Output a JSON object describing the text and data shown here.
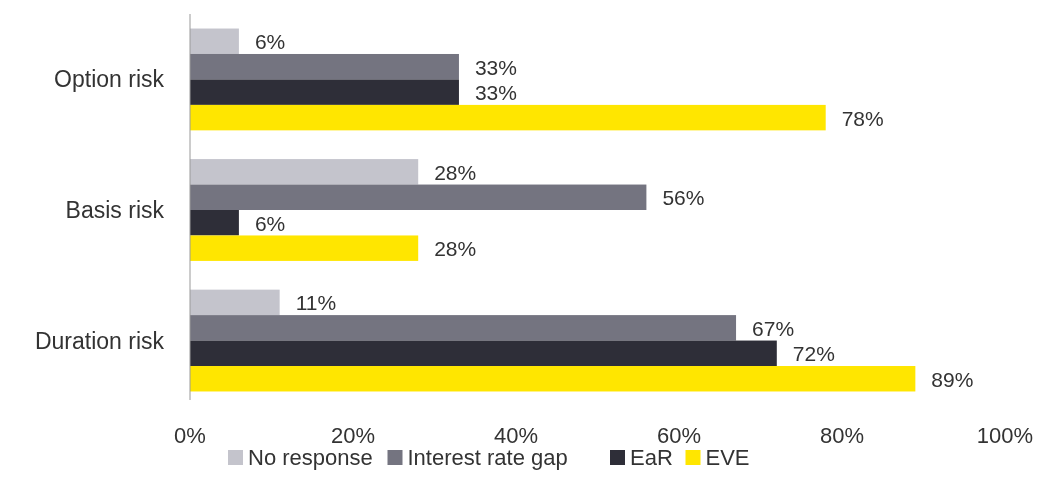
{
  "chart_data": {
    "type": "bar",
    "orientation": "horizontal",
    "categories": [
      "Option risk",
      "Basis risk",
      "Duration risk"
    ],
    "series": [
      {
        "name": "No response",
        "color": "#c4c4cc",
        "values": [
          6,
          28,
          11
        ],
        "value_labels": [
          "6%",
          "28%",
          "11%"
        ]
      },
      {
        "name": "Interest rate gap",
        "color": "#747480",
        "values": [
          33,
          56,
          67
        ],
        "value_labels": [
          "33%",
          "56%",
          "67%"
        ]
      },
      {
        "name": "EaR",
        "color": "#2e2e38",
        "values": [
          33,
          6,
          72
        ],
        "value_labels": [
          "33%",
          "6%",
          "72%"
        ]
      },
      {
        "name": "EVE",
        "color": "#ffe600",
        "values": [
          78,
          28,
          89
        ],
        "value_labels": [
          "78%",
          "28%",
          "89%"
        ]
      }
    ],
    "xlim": [
      0,
      100
    ],
    "xticks": [
      {
        "value": 0,
        "label": "0%"
      },
      {
        "value": 20,
        "label": "20%"
      },
      {
        "value": 40,
        "label": "40%"
      },
      {
        "value": 60,
        "label": "60%"
      },
      {
        "value": 80,
        "label": "80%"
      },
      {
        "value": 100,
        "label": "100%"
      }
    ],
    "grid": false,
    "legend": "bottom"
  }
}
